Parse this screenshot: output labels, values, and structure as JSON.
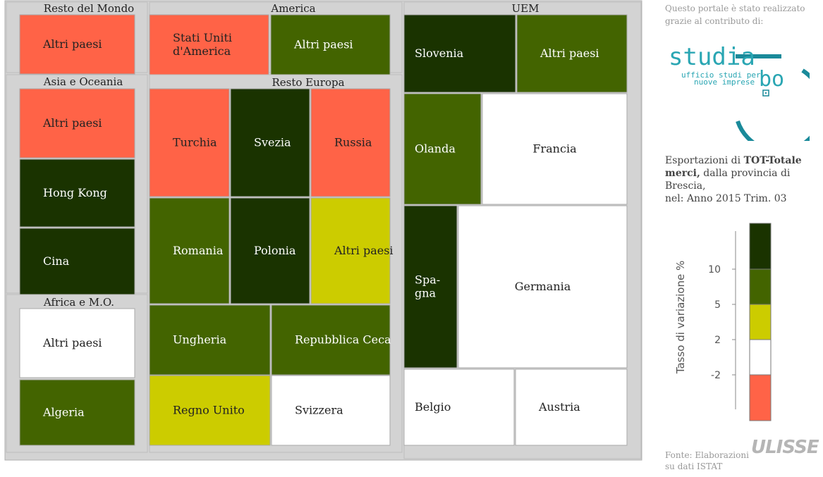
{
  "credit": "Questo portale è stato realizzato grazie al contributo di:",
  "logo": {
    "name": "studia bo",
    "main": "studia",
    "suffix": "bo",
    "sub1": "ufficio studi per",
    "sub2": "nuove imprese"
  },
  "caption": {
    "pre": "Esportazioni di ",
    "bold": "TOT-Totale merci,",
    "post": " dalla provincia di Brescia,",
    "period": "nel: Anno 2015 Trim. 03"
  },
  "source": {
    "line1": "Fonte: Elaborazioni",
    "line2": "su dati ISTAT"
  },
  "brand": "ULISSE",
  "chart_data": {
    "type": "treemap",
    "title": "",
    "color_scale": {
      "label": "Tasso di variazione %",
      "breaks": [
        -2,
        2,
        5,
        10
      ],
      "bins": [
        {
          "range": "< -2",
          "color": "#ff6347"
        },
        {
          "range": "-2 – 2",
          "color": "#ffffff"
        },
        {
          "range": "2 – 5",
          "color": "#cccc00"
        },
        {
          "range": "5 – 10",
          "color": "#436400"
        },
        {
          "range": "> 10",
          "color": "#1a3300"
        }
      ]
    },
    "groups": [
      {
        "name": "Resto del Mondo",
        "items": [
          {
            "name": "Altri paesi",
            "bin": "< -2"
          }
        ]
      },
      {
        "name": "America",
        "items": [
          {
            "name": "Stati Uniti d'America",
            "bin": "< -2"
          },
          {
            "name": "Altri paesi",
            "bin": "5 – 10"
          }
        ]
      },
      {
        "name": "Asia e Oceania",
        "items": [
          {
            "name": "Altri paesi",
            "bin": "< -2"
          },
          {
            "name": "Hong Kong",
            "bin": "> 10"
          },
          {
            "name": "Cina",
            "bin": "> 10"
          }
        ]
      },
      {
        "name": "Africa e M.O.",
        "items": [
          {
            "name": "Altri paesi",
            "bin": "-2 – 2"
          },
          {
            "name": "Algeria",
            "bin": "5 – 10"
          }
        ]
      },
      {
        "name": "Resto Europa",
        "items": [
          {
            "name": "Turchia",
            "bin": "< -2"
          },
          {
            "name": "Svezia",
            "bin": "> 10"
          },
          {
            "name": "Russia",
            "bin": "< -2"
          },
          {
            "name": "Romania",
            "bin": "5 – 10"
          },
          {
            "name": "Polonia",
            "bin": "> 10"
          },
          {
            "name": "Altri paesi",
            "bin": "2 – 5"
          },
          {
            "name": "Ungheria",
            "bin": "5 – 10"
          },
          {
            "name": "Repubblica Ceca",
            "bin": "5 – 10"
          },
          {
            "name": "Regno Unito",
            "bin": "2 – 5"
          },
          {
            "name": "Svizzera",
            "bin": "-2 – 2"
          }
        ]
      },
      {
        "name": "UEM",
        "items": [
          {
            "name": "Slovenia",
            "bin": "> 10"
          },
          {
            "name": "Altri paesi",
            "bin": "5 – 10"
          },
          {
            "name": "Olanda",
            "bin": "5 – 10"
          },
          {
            "name": "Francia",
            "bin": "-2 – 2"
          },
          {
            "name": "Spagna",
            "bin": "> 10"
          },
          {
            "name": "Germania",
            "bin": "-2 – 2"
          },
          {
            "name": "Belgio",
            "bin": "-2 – 2"
          },
          {
            "name": "Austria",
            "bin": "-2 – 2"
          }
        ]
      }
    ]
  }
}
